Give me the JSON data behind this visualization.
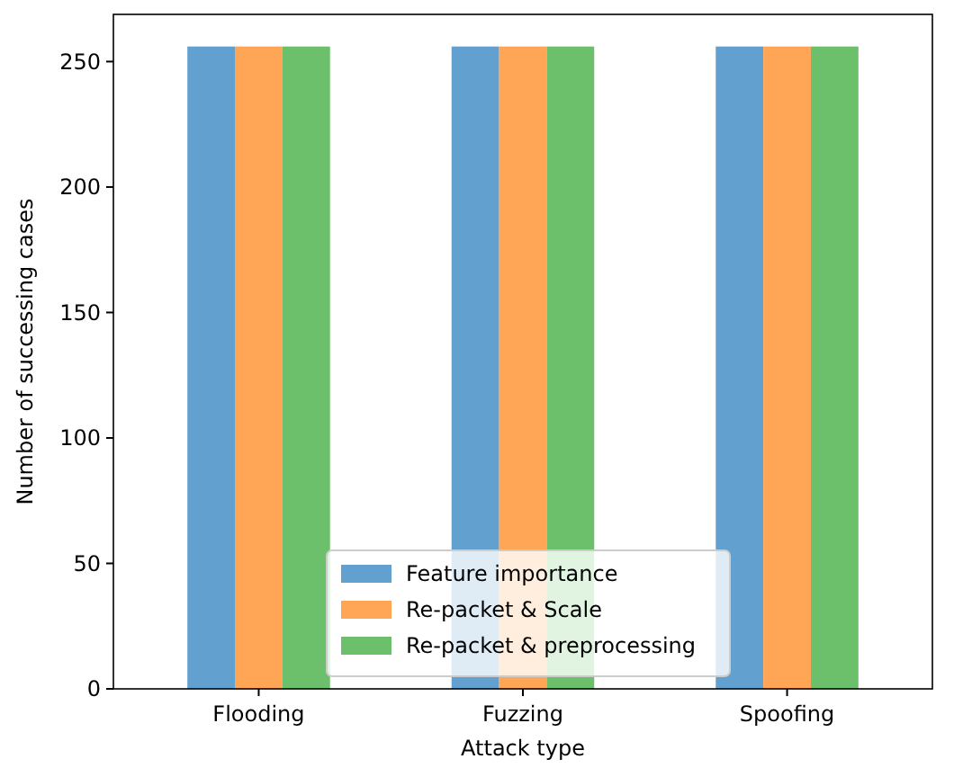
{
  "chart_data": {
    "type": "bar",
    "xlabel": "Attack type",
    "ylabel": "Number of successing cases",
    "categories": [
      "Flooding",
      "Fuzzing",
      "Spoofing"
    ],
    "series": [
      {
        "name": "Feature importance",
        "color": "#62a0cf",
        "values": [
          256,
          256,
          256
        ]
      },
      {
        "name": "Re-packet & Scale",
        "color": "#ffa556",
        "values": [
          256,
          256,
          256
        ]
      },
      {
        "name": "Re-packet & preprocessing",
        "color": "#6cc06c",
        "values": [
          256,
          256,
          256
        ]
      }
    ],
    "ylim": [
      0,
      268.8
    ],
    "yticks": [
      0,
      50,
      100,
      150,
      200,
      250
    ],
    "legend": "bottom",
    "grid": false
  }
}
